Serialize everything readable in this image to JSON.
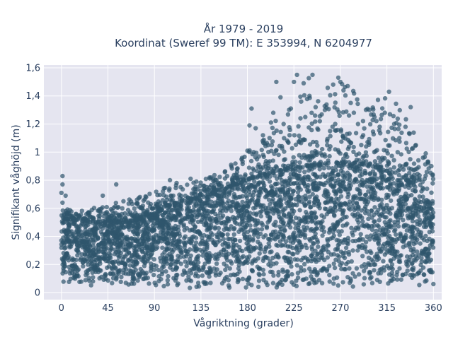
{
  "chart_data": {
    "type": "scatter",
    "title": [
      "År 1979 - 2019",
      "Koordinat (Sweref 99 TM): E 353994, N 6204977"
    ],
    "xlabel": "Vågriktning (grader)",
    "ylabel": "Signifikant våghöjd (m)",
    "xlim": [
      -17,
      368
    ],
    "ylim": [
      -0.05,
      1.62
    ],
    "x_ticks": [
      0,
      45,
      90,
      135,
      180,
      225,
      270,
      315,
      360
    ],
    "x_tick_labels": [
      "0",
      "45",
      "90",
      "135",
      "180",
      "225",
      "270",
      "315",
      "360"
    ],
    "y_ticks": [
      0,
      0.2,
      0.4,
      0.6,
      0.8,
      1.0,
      1.2,
      1.4,
      1.6
    ],
    "y_tick_labels": [
      "0",
      "0,2",
      "0,4",
      "0,6",
      "0,8",
      "1",
      "1,2",
      "1,4",
      "1,6"
    ],
    "grid": true,
    "background_color": "#e5e5f0",
    "marker_color": "#2f566c",
    "density_envelope": {
      "direction": [
        0,
        15,
        30,
        45,
        60,
        75,
        90,
        105,
        120,
        135,
        150,
        165,
        180,
        195,
        210,
        225,
        240,
        255,
        270,
        285,
        300,
        315,
        330,
        345,
        360
      ],
      "min_height": [
        0.05,
        0.05,
        0.05,
        0.04,
        0.04,
        0.04,
        0.04,
        0.04,
        0.03,
        0.03,
        0.03,
        0.03,
        0.03,
        0.03,
        0.03,
        0.04,
        0.04,
        0.04,
        0.04,
        0.04,
        0.04,
        0.05,
        0.05,
        0.05,
        0.05
      ],
      "dense_upper_height": [
        0.52,
        0.52,
        0.5,
        0.5,
        0.5,
        0.52,
        0.56,
        0.62,
        0.66,
        0.68,
        0.72,
        0.76,
        0.8,
        0.84,
        0.86,
        0.88,
        0.9,
        0.92,
        0.92,
        0.92,
        0.9,
        0.86,
        0.82,
        0.74,
        0.58
      ],
      "max_height": [
        0.6,
        0.58,
        0.6,
        0.63,
        0.66,
        0.68,
        0.72,
        0.76,
        0.82,
        0.8,
        0.86,
        0.92,
        1.02,
        1.12,
        1.3,
        1.42,
        1.55,
        1.5,
        1.53,
        1.45,
        1.35,
        1.43,
        1.3,
        1.1,
        0.9
      ]
    },
    "outliers": [
      {
        "x": 1,
        "y": 0.83
      },
      {
        "x": 1,
        "y": 0.77
      },
      {
        "x": 0,
        "y": 0.71
      },
      {
        "x": 4,
        "y": 0.69
      },
      {
        "x": 1,
        "y": 0.64
      },
      {
        "x": 40,
        "y": 0.69
      },
      {
        "x": 53,
        "y": 0.77
      },
      {
        "x": 60,
        "y": 0.65
      },
      {
        "x": 82,
        "y": 0.68
      },
      {
        "x": 105,
        "y": 0.8
      },
      {
        "x": 125,
        "y": 0.81
      },
      {
        "x": 150,
        "y": 0.8
      },
      {
        "x": 170,
        "y": 0.88
      },
      {
        "x": 180,
        "y": 1.01
      },
      {
        "x": 182,
        "y": 1.19
      },
      {
        "x": 184,
        "y": 1.31
      },
      {
        "x": 188,
        "y": 1.17
      },
      {
        "x": 195,
        "y": 1.12
      },
      {
        "x": 200,
        "y": 1.05
      },
      {
        "x": 205,
        "y": 1.28
      },
      {
        "x": 208,
        "y": 1.5
      },
      {
        "x": 212,
        "y": 1.39
      },
      {
        "x": 215,
        "y": 1.2
      },
      {
        "x": 222,
        "y": 1.31
      },
      {
        "x": 225,
        "y": 1.5
      },
      {
        "x": 228,
        "y": 1.55
      },
      {
        "x": 232,
        "y": 1.36
      },
      {
        "x": 236,
        "y": 1.25
      },
      {
        "x": 240,
        "y": 1.4
      },
      {
        "x": 243,
        "y": 1.55
      },
      {
        "x": 246,
        "y": 1.32
      },
      {
        "x": 250,
        "y": 1.22
      },
      {
        "x": 255,
        "y": 1.3
      },
      {
        "x": 260,
        "y": 1.15
      },
      {
        "x": 265,
        "y": 1.2
      },
      {
        "x": 268,
        "y": 1.53
      },
      {
        "x": 270,
        "y": 1.5
      },
      {
        "x": 273,
        "y": 1.44
      },
      {
        "x": 277,
        "y": 1.47
      },
      {
        "x": 280,
        "y": 1.35
      },
      {
        "x": 283,
        "y": 1.28
      },
      {
        "x": 287,
        "y": 1.2
      },
      {
        "x": 292,
        "y": 1.12
      },
      {
        "x": 298,
        "y": 1.3
      },
      {
        "x": 303,
        "y": 1.25
      },
      {
        "x": 308,
        "y": 1.18
      },
      {
        "x": 313,
        "y": 1.28
      },
      {
        "x": 317,
        "y": 1.43
      },
      {
        "x": 322,
        "y": 1.2
      },
      {
        "x": 327,
        "y": 1.1
      },
      {
        "x": 333,
        "y": 1.18
      },
      {
        "x": 338,
        "y": 1.32
      },
      {
        "x": 343,
        "y": 1.05
      },
      {
        "x": 350,
        "y": 0.96
      },
      {
        "x": 355,
        "y": 0.92
      },
      {
        "x": 358,
        "y": 0.9
      }
    ]
  }
}
